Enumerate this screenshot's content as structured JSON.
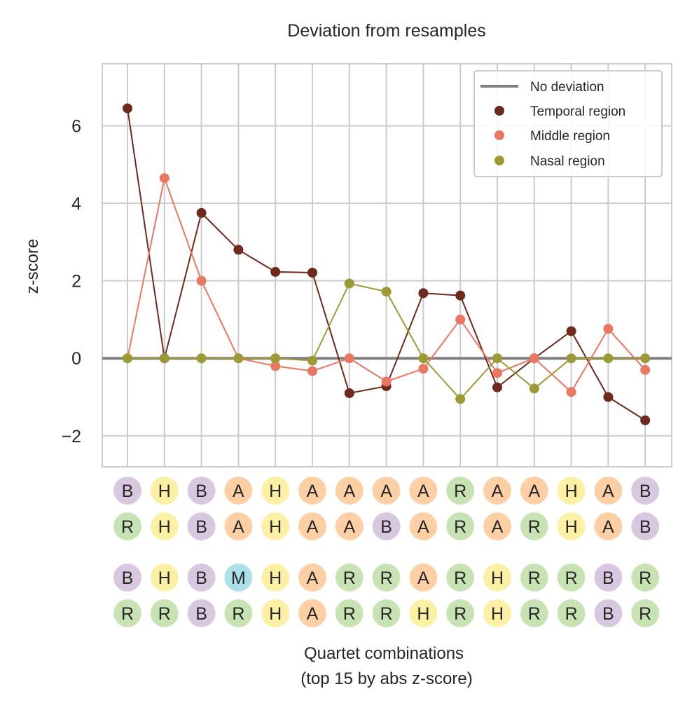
{
  "chart_data": {
    "type": "line",
    "title": "Deviation from resamples",
    "xlabel_line1": "Quartet combinations",
    "xlabel_line2": "(top 15 by abs z-score)",
    "ylabel": "z-score",
    "ylim": [
      -2.8,
      7.6
    ],
    "yticks": [
      -2,
      0,
      2,
      4,
      6
    ],
    "ytick_labels": [
      "−2",
      "0",
      "2",
      "4",
      "6"
    ],
    "grid": true,
    "legend_position": "top-right",
    "baseline": {
      "name": "No deviation",
      "value": 0,
      "color": "#808080"
    },
    "x": [
      1,
      2,
      3,
      4,
      5,
      6,
      7,
      8,
      9,
      10,
      11,
      12,
      13,
      14,
      15
    ],
    "series": [
      {
        "name": "Temporal region",
        "color": "#6e2a1c",
        "values": [
          6.45,
          0,
          3.75,
          2.8,
          2.23,
          2.21,
          -0.9,
          -0.72,
          1.68,
          1.62,
          -0.75,
          0,
          0.7,
          -1.0,
          -1.6
        ]
      },
      {
        "name": "Middle region",
        "color": "#ea7761",
        "values": [
          0,
          4.65,
          2.0,
          0,
          -0.2,
          -0.33,
          0,
          -0.6,
          -0.27,
          1.0,
          -0.38,
          0,
          -0.87,
          0.76,
          -0.3
        ]
      },
      {
        "name": "Nasal region",
        "color": "#9c9a36",
        "values": [
          0,
          0,
          0,
          0,
          0,
          -0.06,
          1.93,
          1.72,
          0,
          -1.05,
          0,
          -0.78,
          0,
          0,
          0
        ]
      }
    ],
    "category_rows": [
      [
        "B",
        "H",
        "B",
        "A",
        "H",
        "A",
        "A",
        "A",
        "A",
        "R",
        "A",
        "A",
        "H",
        "A",
        "B"
      ],
      [
        "R",
        "H",
        "B",
        "A",
        "H",
        "A",
        "A",
        "B",
        "A",
        "R",
        "A",
        "R",
        "H",
        "A",
        "B"
      ],
      [
        "B",
        "H",
        "B",
        "M",
        "H",
        "A",
        "R",
        "R",
        "A",
        "R",
        "H",
        "R",
        "R",
        "B",
        "R"
      ],
      [
        "R",
        "R",
        "B",
        "R",
        "H",
        "A",
        "R",
        "R",
        "H",
        "R",
        "H",
        "R",
        "R",
        "B",
        "R"
      ]
    ],
    "category_colors": {
      "A": "#fdcfa5",
      "B": "#d7c8e0",
      "H": "#fbf0a4",
      "M": "#abe0ea",
      "R": "#c8e3b3"
    }
  }
}
